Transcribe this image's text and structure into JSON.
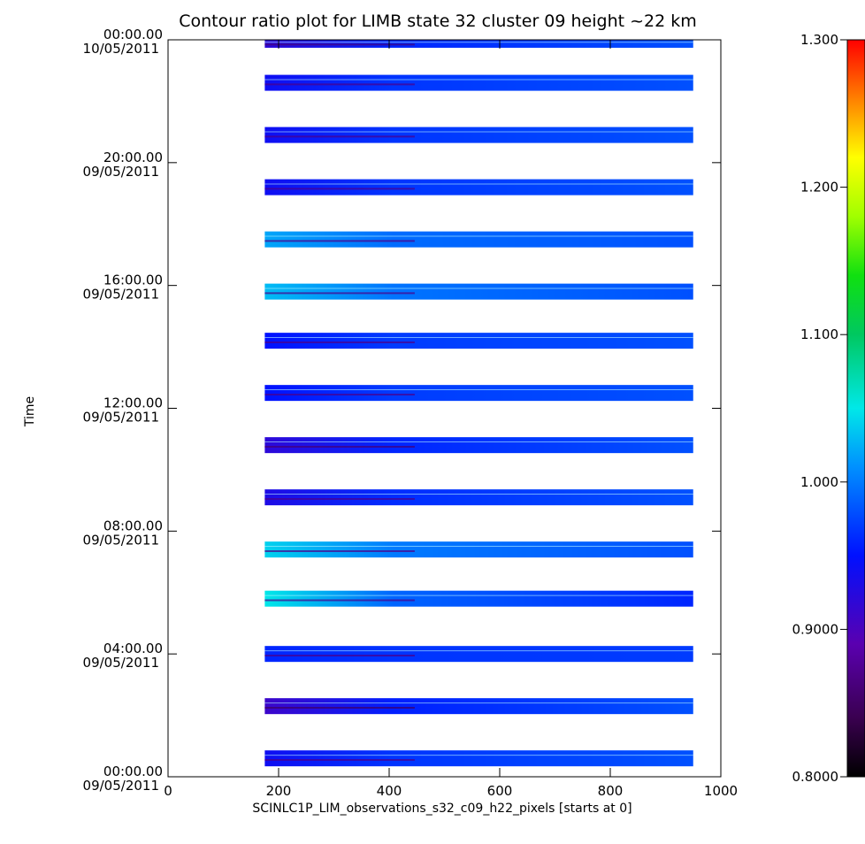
{
  "chart_data": {
    "type": "heatmap",
    "title": "Contour ratio plot for LIMB state 32 cluster 09 height ~22 km",
    "xlabel": "SCINLC1P_LIM_observations_s32_c09_h22_pixels [starts at 0]",
    "ylabel": "Time",
    "xlim": [
      0,
      1000
    ],
    "x_ticks": [
      0,
      200,
      400,
      600,
      800,
      1000
    ],
    "x_tick_labels": [
      "0",
      "200",
      "400",
      "600",
      "800",
      "1000"
    ],
    "ylim_hours": [
      0,
      24
    ],
    "y_ticks": [
      {
        "hours": 0,
        "time": "00:00.00",
        "date": "09/05/2011"
      },
      {
        "hours": 4,
        "time": "04:00.00",
        "date": "09/05/2011"
      },
      {
        "hours": 8,
        "time": "08:00.00",
        "date": "09/05/2011"
      },
      {
        "hours": 12,
        "time": "12:00.00",
        "date": "09/05/2011"
      },
      {
        "hours": 16,
        "time": "16:00.00",
        "date": "09/05/2011"
      },
      {
        "hours": 20,
        "time": "20:00.00",
        "date": "09/05/2011"
      },
      {
        "hours": 24,
        "time": "00:00.00",
        "date": "10/05/2011"
      }
    ],
    "colorbar": {
      "range": [
        0.8,
        1.3
      ],
      "ticks": [
        0.8,
        0.9,
        1.0,
        1.1,
        1.2,
        1.3
      ],
      "tick_labels": [
        "0.8000",
        "0.9000",
        "1.000",
        "1.100",
        "1.200",
        "1.300"
      ],
      "colormap": "rainbow"
    },
    "pixel_range": [
      175,
      950
    ],
    "orbit_bands": [
      {
        "start_hours": 0.6,
        "ratio_left": 0.94,
        "ratio_right": 0.98
      },
      {
        "start_hours": 2.3,
        "ratio_left": 0.91,
        "ratio_right": 0.98
      },
      {
        "start_hours": 4.0,
        "ratio_left": 0.96,
        "ratio_right": 0.97
      },
      {
        "start_hours": 5.8,
        "ratio_left": 1.05,
        "ratio_right": 0.96
      },
      {
        "start_hours": 7.4,
        "ratio_left": 1.04,
        "ratio_right": 0.98
      },
      {
        "start_hours": 9.1,
        "ratio_left": 0.93,
        "ratio_right": 0.98
      },
      {
        "start_hours": 10.8,
        "ratio_left": 0.92,
        "ratio_right": 0.98
      },
      {
        "start_hours": 12.5,
        "ratio_left": 0.95,
        "ratio_right": 0.98
      },
      {
        "start_hours": 14.2,
        "ratio_left": 0.95,
        "ratio_right": 0.98
      },
      {
        "start_hours": 15.8,
        "ratio_left": 1.03,
        "ratio_right": 0.98
      },
      {
        "start_hours": 17.5,
        "ratio_left": 1.02,
        "ratio_right": 0.98
      },
      {
        "start_hours": 19.2,
        "ratio_left": 0.94,
        "ratio_right": 0.98
      },
      {
        "start_hours": 20.9,
        "ratio_left": 0.94,
        "ratio_right": 0.98
      },
      {
        "start_hours": 22.6,
        "ratio_left": 0.94,
        "ratio_right": 0.98
      },
      {
        "start_hours": 24.0,
        "ratio_left": 0.92,
        "ratio_right": 0.98
      }
    ]
  }
}
